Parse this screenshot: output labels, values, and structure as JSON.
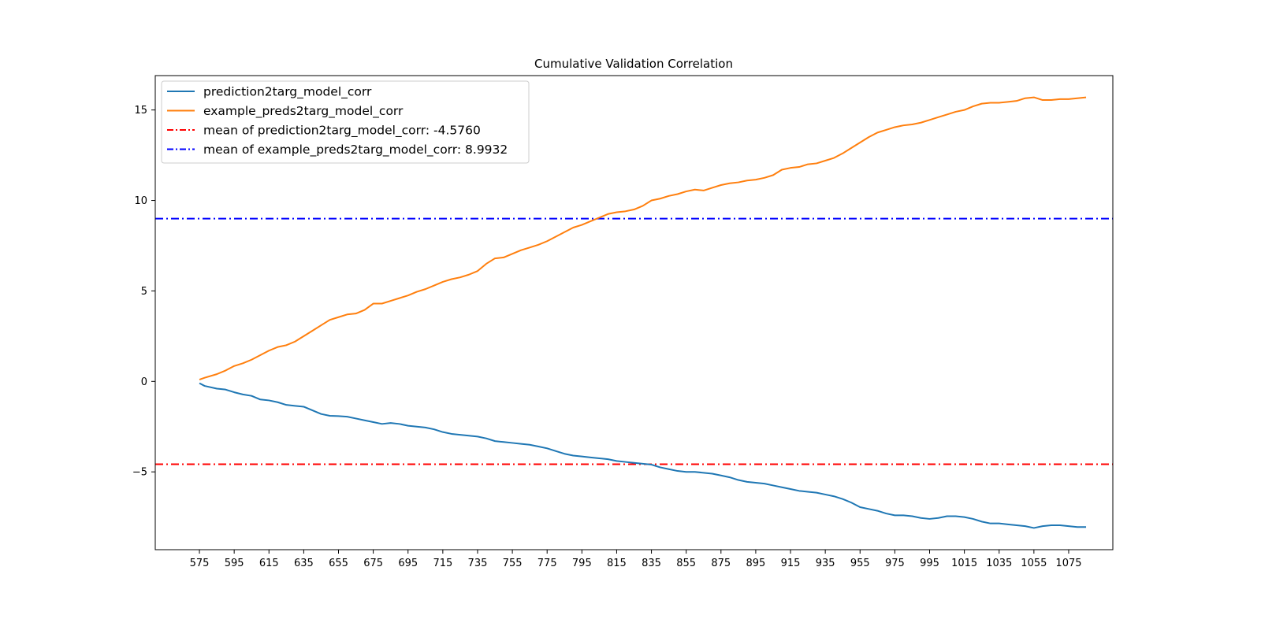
{
  "chart_data": {
    "type": "line",
    "title": "Cumulative Validation Correlation",
    "xlabel": "",
    "ylabel": "",
    "xlim": [
      549.6,
      1100.4
    ],
    "ylim": [
      -9.3,
      16.9
    ],
    "xticks": [
      575,
      595,
      615,
      635,
      655,
      675,
      695,
      715,
      735,
      755,
      775,
      795,
      815,
      835,
      855,
      875,
      895,
      915,
      935,
      955,
      975,
      995,
      1015,
      1035,
      1055,
      1075
    ],
    "xtick_labels": [
      "575",
      "595",
      "615",
      "635",
      "655",
      "675",
      "695",
      "715",
      "735",
      "755",
      "775",
      "795",
      "815",
      "835",
      "855",
      "875",
      "895",
      "915",
      "935",
      "955",
      "975",
      "995",
      "1015",
      "1035",
      "1055",
      "1075"
    ],
    "yticks": [
      -5,
      0,
      5,
      10,
      15
    ],
    "ytick_labels": [
      "−5",
      "0",
      "5",
      "10",
      "15"
    ],
    "grid": false,
    "legend_position": "top-left",
    "series": [
      {
        "name": "prediction2targ_model_corr",
        "color": "#1f77b4",
        "style": "solid",
        "x": [
          575,
          578,
          585,
          590,
          595,
          600,
          605,
          610,
          615,
          620,
          625,
          630,
          635,
          640,
          645,
          650,
          655,
          660,
          665,
          670,
          675,
          680,
          685,
          690,
          695,
          700,
          705,
          710,
          715,
          720,
          725,
          730,
          735,
          740,
          745,
          750,
          755,
          760,
          765,
          770,
          775,
          780,
          785,
          790,
          795,
          800,
          805,
          810,
          815,
          820,
          825,
          830,
          835,
          840,
          845,
          850,
          855,
          860,
          865,
          870,
          875,
          880,
          885,
          890,
          895,
          900,
          905,
          910,
          915,
          920,
          925,
          930,
          935,
          940,
          945,
          950,
          955,
          960,
          965,
          970,
          975,
          980,
          985,
          990,
          995,
          1000,
          1005,
          1010,
          1015,
          1020,
          1025,
          1030,
          1035,
          1040,
          1045,
          1050,
          1055,
          1060,
          1065,
          1070,
          1075,
          1080,
          1085
        ],
        "y": [
          -0.1,
          -0.25,
          -0.4,
          -0.45,
          -0.6,
          -0.72,
          -0.8,
          -1.0,
          -1.05,
          -1.15,
          -1.3,
          -1.35,
          -1.4,
          -1.6,
          -1.8,
          -1.9,
          -1.92,
          -1.95,
          -2.05,
          -2.15,
          -2.25,
          -2.35,
          -2.3,
          -2.35,
          -2.45,
          -2.5,
          -2.55,
          -2.65,
          -2.8,
          -2.9,
          -2.95,
          -3.0,
          -3.05,
          -3.15,
          -3.3,
          -3.35,
          -3.4,
          -3.45,
          -3.5,
          -3.6,
          -3.7,
          -3.85,
          -4.0,
          -4.1,
          -4.15,
          -4.2,
          -4.25,
          -4.3,
          -4.4,
          -4.45,
          -4.5,
          -4.55,
          -4.6,
          -4.75,
          -4.85,
          -4.95,
          -5.0,
          -5.0,
          -5.05,
          -5.1,
          -5.2,
          -5.3,
          -5.45,
          -5.55,
          -5.6,
          -5.65,
          -5.75,
          -5.85,
          -5.95,
          -6.05,
          -6.1,
          -6.15,
          -6.25,
          -6.35,
          -6.5,
          -6.7,
          -6.95,
          -7.05,
          -7.15,
          -7.3,
          -7.4,
          -7.4,
          -7.45,
          -7.55,
          -7.6,
          -7.55,
          -7.45,
          -7.45,
          -7.5,
          -7.6,
          -7.75,
          -7.85,
          -7.85,
          -7.9,
          -7.95,
          -8.0,
          -8.1,
          -8.0,
          -7.95,
          -7.95,
          -8.0,
          -8.05,
          -8.05
        ]
      },
      {
        "name": "example_preds2targ_model_corr",
        "color": "#ff7f0e",
        "style": "solid",
        "x": [
          575,
          578,
          585,
          590,
          595,
          600,
          605,
          610,
          615,
          620,
          625,
          630,
          635,
          640,
          645,
          650,
          655,
          660,
          665,
          670,
          675,
          680,
          685,
          690,
          695,
          700,
          705,
          710,
          715,
          720,
          725,
          730,
          735,
          740,
          745,
          750,
          755,
          760,
          765,
          770,
          775,
          780,
          785,
          790,
          795,
          800,
          805,
          810,
          815,
          820,
          825,
          830,
          835,
          840,
          845,
          850,
          855,
          860,
          865,
          870,
          875,
          880,
          885,
          890,
          895,
          900,
          905,
          910,
          915,
          920,
          925,
          930,
          935,
          940,
          945,
          950,
          955,
          960,
          965,
          970,
          975,
          980,
          985,
          990,
          995,
          1000,
          1005,
          1010,
          1015,
          1020,
          1025,
          1030,
          1035,
          1040,
          1045,
          1050,
          1055,
          1060,
          1065,
          1070,
          1075,
          1080,
          1085
        ],
        "y": [
          0.1,
          0.2,
          0.4,
          0.6,
          0.85,
          1.0,
          1.2,
          1.45,
          1.7,
          1.9,
          2.0,
          2.2,
          2.5,
          2.8,
          3.1,
          3.4,
          3.55,
          3.7,
          3.75,
          3.95,
          4.3,
          4.3,
          4.45,
          4.6,
          4.75,
          4.95,
          5.1,
          5.3,
          5.5,
          5.65,
          5.75,
          5.9,
          6.1,
          6.5,
          6.8,
          6.85,
          7.05,
          7.25,
          7.4,
          7.55,
          7.75,
          8.0,
          8.25,
          8.5,
          8.65,
          8.85,
          9.05,
          9.25,
          9.35,
          9.4,
          9.5,
          9.7,
          10.0,
          10.1,
          10.25,
          10.35,
          10.5,
          10.6,
          10.55,
          10.7,
          10.85,
          10.95,
          11.0,
          11.1,
          11.15,
          11.25,
          11.4,
          11.7,
          11.8,
          11.85,
          12.0,
          12.05,
          12.2,
          12.35,
          12.6,
          12.9,
          13.2,
          13.5,
          13.75,
          13.9,
          14.05,
          14.15,
          14.2,
          14.3,
          14.45,
          14.6,
          14.75,
          14.9,
          15.0,
          15.2,
          15.35,
          15.4,
          15.4,
          15.45,
          15.5,
          15.65,
          15.7,
          15.55,
          15.55,
          15.6,
          15.6,
          15.65,
          15.7
        ]
      }
    ],
    "reference_lines": [
      {
        "name": "mean of prediction2targ_model_corr: -4.5760",
        "y": -4.576,
        "color": "#ff0000",
        "style": "dashdot"
      },
      {
        "name": "mean of example_preds2targ_model_corr: 8.9932",
        "y": 8.9932,
        "color": "#0000ff",
        "style": "dashdot"
      }
    ]
  }
}
